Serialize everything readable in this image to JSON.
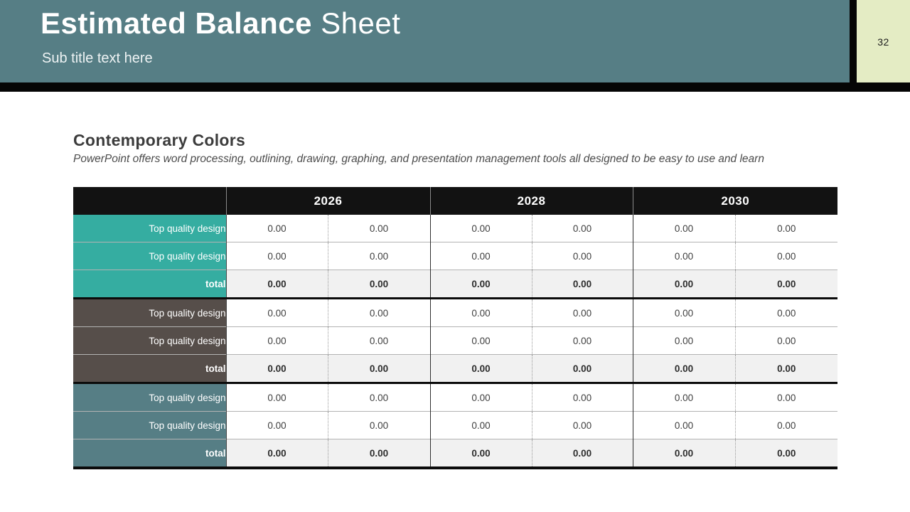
{
  "slide": {
    "page_number": "32",
    "header": {
      "title_bold": "Estimated Balance",
      "title_light": " Sheet",
      "subtitle": "Sub title text here"
    },
    "section": {
      "heading": "Contemporary Colors",
      "description": "PowerPoint offers word processing, outlining, drawing, graphing, and presentation management tools all designed to be easy to use and learn"
    }
  },
  "colors": {
    "header_slate": "#567e85",
    "teal_group": "#35ada1",
    "brown_group": "#564e4a",
    "slate_group": "#567e85",
    "page_box_green": "#e4ecc4",
    "band_black": "#050505",
    "total_row_bg": "#f1f1f1"
  },
  "table": {
    "year_headers": [
      "2026",
      "2028",
      "2030"
    ],
    "groups": [
      {
        "color": "#35ada1",
        "rows": [
          {
            "label": "Top quality design",
            "total": false,
            "values": [
              "0.00",
              "0.00",
              "0.00",
              "0.00",
              "0.00",
              "0.00"
            ]
          },
          {
            "label": "Top quality design",
            "total": false,
            "values": [
              "0.00",
              "0.00",
              "0.00",
              "0.00",
              "0.00",
              "0.00"
            ]
          },
          {
            "label": "total",
            "total": true,
            "values": [
              "0.00",
              "0.00",
              "0.00",
              "0.00",
              "0.00",
              "0.00"
            ]
          }
        ]
      },
      {
        "color": "#564e4a",
        "rows": [
          {
            "label": "Top quality design",
            "total": false,
            "values": [
              "0.00",
              "0.00",
              "0.00",
              "0.00",
              "0.00",
              "0.00"
            ]
          },
          {
            "label": "Top quality design",
            "total": false,
            "values": [
              "0.00",
              "0.00",
              "0.00",
              "0.00",
              "0.00",
              "0.00"
            ]
          },
          {
            "label": "total",
            "total": true,
            "values": [
              "0.00",
              "0.00",
              "0.00",
              "0.00",
              "0.00",
              "0.00"
            ]
          }
        ]
      },
      {
        "color": "#567e85",
        "rows": [
          {
            "label": "Top quality design",
            "total": false,
            "values": [
              "0.00",
              "0.00",
              "0.00",
              "0.00",
              "0.00",
              "0.00"
            ]
          },
          {
            "label": "Top quality design",
            "total": false,
            "values": [
              "0.00",
              "0.00",
              "0.00",
              "0.00",
              "0.00",
              "0.00"
            ]
          },
          {
            "label": "total",
            "total": true,
            "values": [
              "0.00",
              "0.00",
              "0.00",
              "0.00",
              "0.00",
              "0.00"
            ]
          }
        ]
      }
    ]
  }
}
